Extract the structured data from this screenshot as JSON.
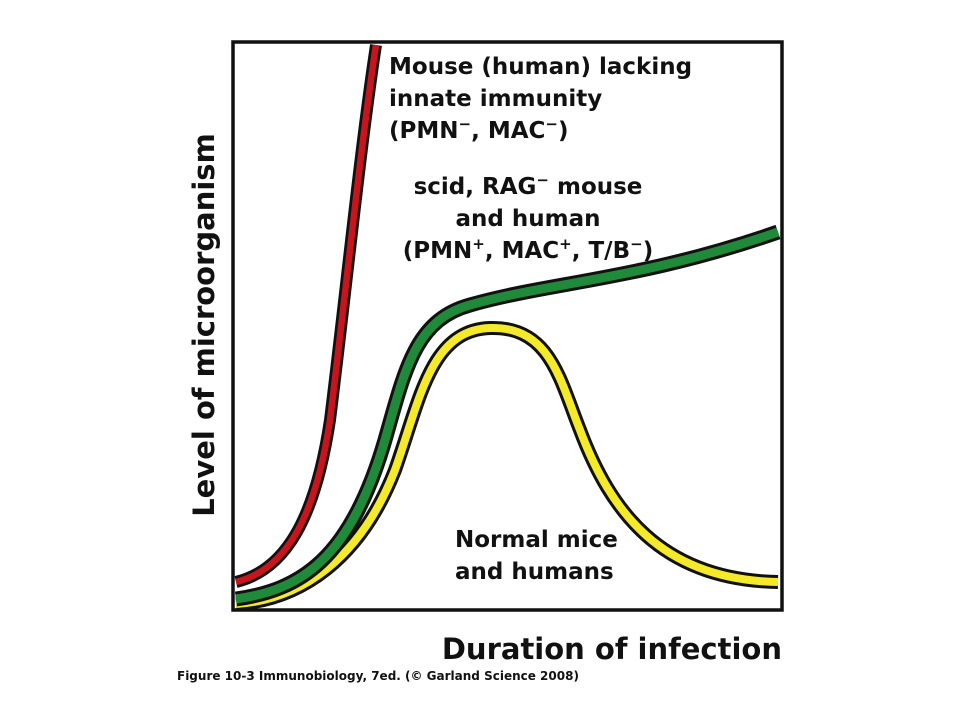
{
  "axes": {
    "y_label": "Level of microorganism",
    "x_label": "Duration of infection"
  },
  "curves": {
    "innate_deficient": {
      "label_line1": "Mouse (human) lacking",
      "label_line2": "innate immunity",
      "label_line3_a": "(PMN",
      "label_line3_sup1": "−",
      "label_line3_b": ", MAC",
      "label_line3_sup2": "−",
      "label_line3_c": ")",
      "color": "#c8141c"
    },
    "adaptive_deficient": {
      "label_line1_a": "scid, RAG",
      "label_line1_sup": "−",
      "label_line1_b": " mouse",
      "label_line2": "and human",
      "label_line3_a": "(PMN",
      "label_line3_sup1": "+",
      "label_line3_b": ", MAC",
      "label_line3_sup2": "+",
      "label_line3_c": ", T/B",
      "label_line3_sup3": "−",
      "label_line3_d": ")",
      "color": "#1f8a3a"
    },
    "normal": {
      "label_line1": "Normal mice",
      "label_line2": "and humans",
      "color": "#f5ea2a"
    }
  },
  "caption": "Figure 10-3  Immunobiology, 7ed. (© Garland Science 2008)"
}
